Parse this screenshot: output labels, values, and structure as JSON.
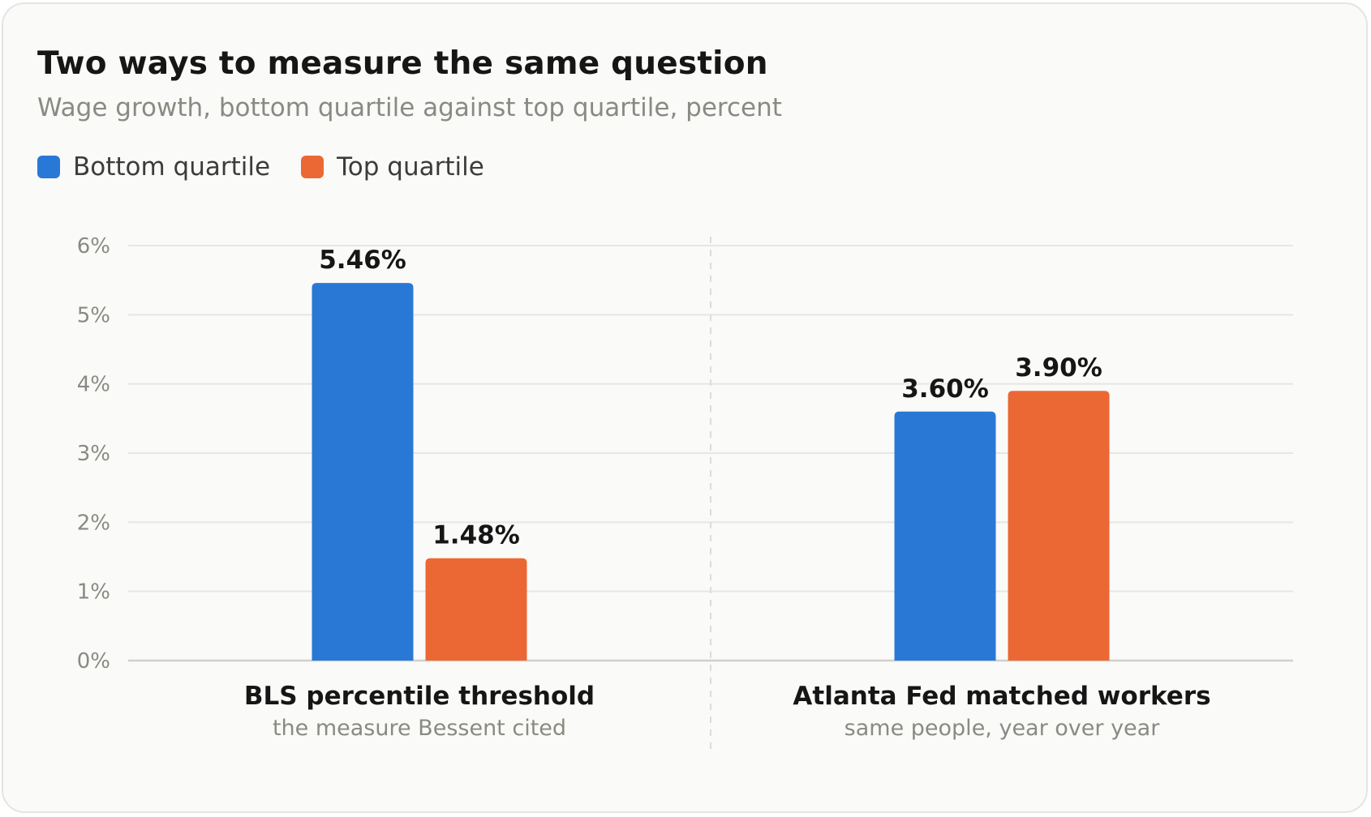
{
  "chart_data": {
    "type": "bar",
    "title": "Two ways to measure the same question",
    "subtitle": "Wage growth, bottom quartile against top quartile, percent",
    "categories": [
      "BLS percentile threshold",
      "Atlanta Fed matched workers"
    ],
    "category_notes": [
      "the measure Bessent cited",
      "same people, year over year"
    ],
    "series": [
      {
        "name": "Bottom quartile",
        "color": "#2a78d6",
        "values": [
          5.46,
          3.6
        ],
        "labels": [
          "5.46%",
          "3.60%"
        ]
      },
      {
        "name": "Top quartile",
        "color": "#eb6834",
        "values": [
          1.48,
          3.9
        ],
        "labels": [
          "1.48%",
          "3.90%"
        ]
      }
    ],
    "ylim": [
      0,
      6
    ],
    "yticks": [
      0,
      1,
      2,
      3,
      4,
      5,
      6
    ],
    "ytick_labels": [
      "0%",
      "1%",
      "2%",
      "3%",
      "4%",
      "5%",
      "6%"
    ],
    "xlabel": "",
    "ylabel": "",
    "grid": true,
    "legend_position": "top-left"
  }
}
